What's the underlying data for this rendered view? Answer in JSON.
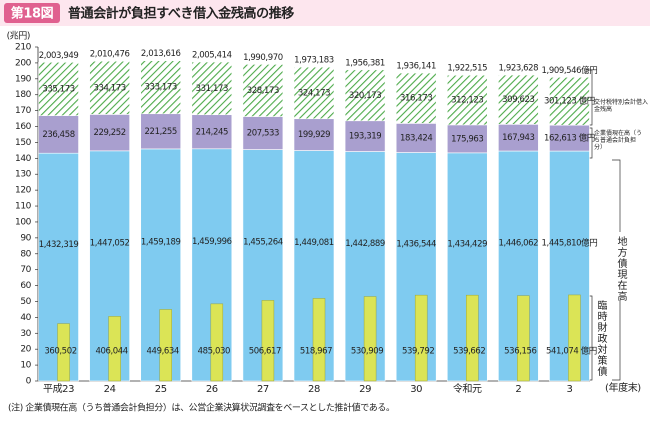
{
  "header": {
    "badge": "第18図",
    "title": "普通会計が負担すべき借入金残高の推移"
  },
  "chart_data": {
    "type": "stacked_bar",
    "y_label": "(兆円)",
    "x_label": "(年度末)",
    "categories": [
      "平成23",
      "24",
      "25",
      "26",
      "27",
      "28",
      "29",
      "30",
      "令和元",
      "2",
      "3"
    ],
    "ylim": [
      0,
      210
    ],
    "yticks": [
      0,
      10,
      20,
      30,
      40,
      50,
      60,
      70,
      80,
      90,
      100,
      110,
      120,
      130,
      140,
      150,
      160,
      170,
      180,
      190,
      200,
      210
    ],
    "series": [
      {
        "name": "地方債現在高",
        "color": "#7fcbf0",
        "values": [
          143.2319,
          144.7052,
          145.9189,
          145.9996,
          145.5264,
          144.9081,
          144.2889,
          143.6544,
          143.4429,
          144.6062,
          144.581
        ],
        "value_labels": [
          "1,432,319",
          "1,447,052",
          "1,459,189",
          "1,459,996",
          "1,455,264",
          "1,449,081",
          "1,442,889",
          "1,436,544",
          "1,434,429",
          "1,446,062",
          "1,445,810億円"
        ]
      },
      {
        "name": "企業債現在高（うち普通会計負担分）",
        "color": "#a99fcf",
        "values": [
          23.6458,
          22.9252,
          22.1255,
          21.4245,
          20.7533,
          19.9929,
          19.3319,
          18.3424,
          17.5963,
          16.7943,
          16.2613
        ],
        "value_labels": [
          "236,458",
          "229,252",
          "221,255",
          "214,245",
          "207,533",
          "199,929",
          "193,319",
          "183,424",
          "175,963",
          "167,943",
          "162,613 億円"
        ]
      },
      {
        "name": "交付税特別会計借入金残高",
        "color": "#4daa4a",
        "values": [
          33.5173,
          33.4173,
          33.3173,
          33.1173,
          32.8173,
          32.4173,
          32.0173,
          31.6173,
          31.2123,
          30.9623,
          30.1123
        ],
        "value_labels": [
          "335,173",
          "334,173",
          "333,173",
          "331,173",
          "328,173",
          "324,173",
          "320,173",
          "316,173",
          "312,123",
          "309,623",
          "301,123 億円"
        ]
      }
    ],
    "overlay": {
      "name": "臨時財政対策債",
      "color": "#dbe456",
      "values": [
        36.0502,
        40.6044,
        44.9634,
        48.503,
        50.6617,
        51.8967,
        53.0909,
        53.9792,
        53.9662,
        53.6156,
        54.1074
      ],
      "value_labels": [
        "360,502",
        "406,044",
        "449,634",
        "485,030",
        "506,617",
        "518,967",
        "530,909",
        "539,792",
        "539,662",
        "536,156",
        "541,074 億円"
      ]
    },
    "totals": {
      "values": [
        200.3949,
        201.0476,
        201.3616,
        200.5414,
        199.097,
        197.3183,
        195.6381,
        193.6141,
        192.2515,
        192.3628,
        190.9546
      ],
      "value_labels": [
        "2,003,949",
        "2,010,476",
        "2,013,616",
        "2,005,414",
        "1,990,970",
        "1,973,183",
        "1,956,381",
        "1,936,141",
        "1,922,515",
        "1,923,628",
        "1,909,546億円"
      ]
    },
    "note": "(注)  企業債現在高（うち普通会計負担分）は、公営企業決算状況調査をベースとした推計値である。"
  }
}
